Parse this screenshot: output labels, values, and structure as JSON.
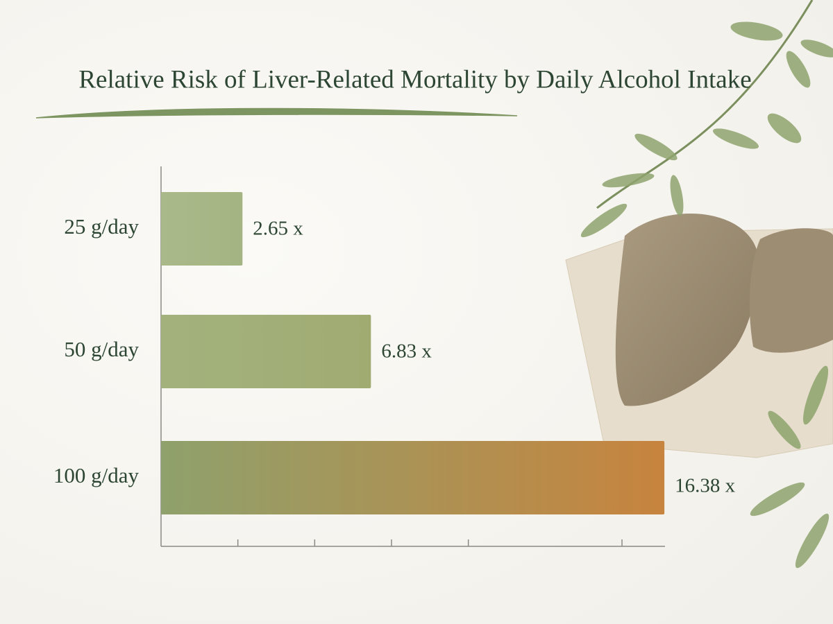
{
  "chart_data": {
    "type": "hbar",
    "title": "Relative Risk of Liver-Related Mortality by Daily Alcohol Intake",
    "categories": [
      "25 g/day",
      "50 g/day",
      "100 g/day"
    ],
    "values": [
      2.65,
      6.83,
      16.38
    ],
    "value_labels": [
      "2.65 x",
      "6.83 x",
      "16.38 x"
    ],
    "colors": [
      "#a9b98a",
      "#a3b27d",
      "#8fa16c"
    ],
    "end_colors": [
      "#a4b482",
      "#a0ab72",
      "#c7843e"
    ],
    "xlim": [
      0,
      16.4
    ],
    "xticks": [
      2.5,
      5,
      7.5,
      10,
      15
    ]
  }
}
